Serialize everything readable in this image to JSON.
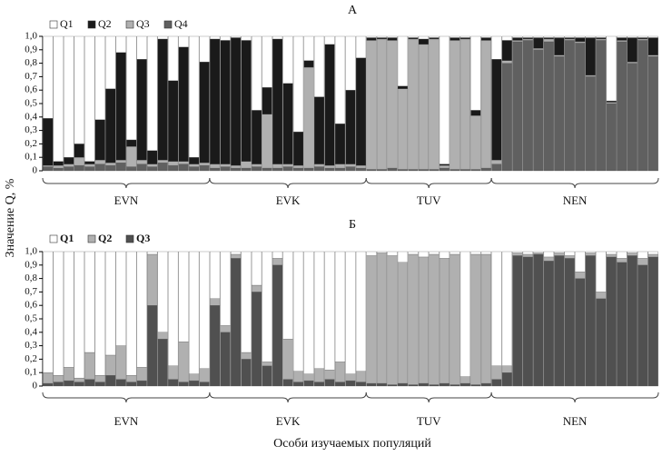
{
  "ylabel": "Значение Q, %",
  "xlabel": "Особи изучаемых популяций",
  "chart_data": [
    {
      "type": "stacked_bar",
      "title": "А",
      "legend": "top-left",
      "categories": [
        "EVN",
        "EVN",
        "EVN",
        "EVN",
        "EVN",
        "EVN",
        "EVN",
        "EVN",
        "EVN",
        "EVN",
        "EVN",
        "EVN",
        "EVN",
        "EVN",
        "EVN",
        "EVN",
        "EVK",
        "EVK",
        "EVK",
        "EVK",
        "EVK",
        "EVK",
        "EVK",
        "EVK",
        "EVK",
        "EVK",
        "EVK",
        "EVK",
        "EVK",
        "EVK",
        "EVK",
        "TUV",
        "TUV",
        "TUV",
        "TUV",
        "TUV",
        "TUV",
        "TUV",
        "TUV",
        "TUV",
        "TUV",
        "TUV",
        "TUV",
        "NEN",
        "NEN",
        "NEN",
        "NEN",
        "NEN",
        "NEN",
        "NEN",
        "NEN",
        "NEN",
        "NEN",
        "NEN",
        "NEN",
        "NEN",
        "NEN",
        "NEN",
        "NEN"
      ],
      "ylim": [
        0,
        1
      ],
      "yticks": [
        0,
        {
          "value": 0.1,
          "label": "0,1"
        },
        {
          "value": 0.2,
          "label": "0,2"
        },
        {
          "value": 0.3,
          "label": "0,3"
        },
        {
          "value": 0.4,
          "label": "0,4"
        },
        {
          "value": 0.5,
          "label": "0,5"
        },
        {
          "value": 0.6,
          "label": "0,6"
        },
        {
          "value": 0.7,
          "label": "0,7"
        },
        {
          "value": 0.8,
          "label": "0,8"
        },
        {
          "value": 0.9,
          "label": "0,9"
        },
        {
          "value": 1,
          "label": "1,0"
        }
      ],
      "series": [
        {
          "name": "Q1",
          "color": "#ffffff",
          "values": [
            0.61,
            0.93,
            0.9,
            0.8,
            0.93,
            0.62,
            0.39,
            0.12,
            0.77,
            0.17,
            0.85,
            0.02,
            0.33,
            0.08,
            0.9,
            0.19,
            0.02,
            0.03,
            0.01,
            0.03,
            0.55,
            0.38,
            0.02,
            0.35,
            0.71,
            0.18,
            0.45,
            0.06,
            0.65,
            0.4,
            0.16,
            0.01,
            0.01,
            0.01,
            0.37,
            0.01,
            0.02,
            0.01,
            0.95,
            0.01,
            0.01,
            0.55,
            0.01,
            0.17,
            0.03,
            0.01,
            0.01,
            0.01,
            0.01,
            0.01,
            0.01,
            0.01,
            0.01,
            0.01,
            0.48,
            0.01,
            0.01,
            0.01,
            0.01
          ]
        },
        {
          "name": "Q2",
          "color": "#1a1a1a",
          "values": [
            0.35,
            0.03,
            0.05,
            0.1,
            0.02,
            0.3,
            0.55,
            0.8,
            0.05,
            0.75,
            0.1,
            0.9,
            0.6,
            0.85,
            0.05,
            0.75,
            0.93,
            0.92,
            0.95,
            0.9,
            0.4,
            0.2,
            0.93,
            0.6,
            0.25,
            0.05,
            0.5,
            0.9,
            0.3,
            0.55,
            0.8,
            0.02,
            0.01,
            0.02,
            0.02,
            0.01,
            0.04,
            0.01,
            0.01,
            0.02,
            0.01,
            0.04,
            0.02,
            0.75,
            0.15,
            0.02,
            0.01,
            0.08,
            0.01,
            0.13,
            0.01,
            0.03,
            0.28,
            0.01,
            0.01,
            0.02,
            0.18,
            0.01,
            0.13
          ]
        },
        {
          "name": "Q3",
          "color": "#b0b0b0",
          "values": [
            0.01,
            0.02,
            0.02,
            0.06,
            0.02,
            0.03,
            0.02,
            0.02,
            0.15,
            0.03,
            0.02,
            0.02,
            0.03,
            0.02,
            0.02,
            0.02,
            0.03,
            0.02,
            0.02,
            0.05,
            0.02,
            0.4,
            0.03,
            0.02,
            0.02,
            0.75,
            0.02,
            0.02,
            0.03,
            0.02,
            0.02,
            0.96,
            0.97,
            0.95,
            0.6,
            0.97,
            0.93,
            0.97,
            0.02,
            0.96,
            0.97,
            0.4,
            0.95,
            0.03,
            0.02,
            0.01,
            0.01,
            0.01,
            0.02,
            0.01,
            0.01,
            0.01,
            0.01,
            0.01,
            0.01,
            0.01,
            0.01,
            0.01,
            0.01
          ]
        },
        {
          "name": "Q4",
          "color": "#606060",
          "values": [
            0.03,
            0.02,
            0.03,
            0.04,
            0.03,
            0.05,
            0.04,
            0.06,
            0.03,
            0.05,
            0.03,
            0.06,
            0.04,
            0.05,
            0.03,
            0.04,
            0.02,
            0.03,
            0.02,
            0.02,
            0.03,
            0.02,
            0.02,
            0.03,
            0.02,
            0.02,
            0.03,
            0.02,
            0.02,
            0.03,
            0.02,
            0.01,
            0.01,
            0.02,
            0.01,
            0.01,
            0.01,
            0.01,
            0.02,
            0.01,
            0.01,
            0.01,
            0.02,
            0.05,
            0.8,
            0.96,
            0.97,
            0.9,
            0.96,
            0.85,
            0.97,
            0.95,
            0.7,
            0.97,
            0.5,
            0.96,
            0.8,
            0.97,
            0.85
          ]
        }
      ]
    },
    {
      "type": "stacked_bar",
      "title": "Б",
      "legend": "top-left",
      "categories": [
        "EVN",
        "EVN",
        "EVN",
        "EVN",
        "EVN",
        "EVN",
        "EVN",
        "EVN",
        "EVN",
        "EVN",
        "EVN",
        "EVN",
        "EVN",
        "EVN",
        "EVN",
        "EVN",
        "EVK",
        "EVK",
        "EVK",
        "EVK",
        "EVK",
        "EVK",
        "EVK",
        "EVK",
        "EVK",
        "EVK",
        "EVK",
        "EVK",
        "EVK",
        "EVK",
        "EVK",
        "TUV",
        "TUV",
        "TUV",
        "TUV",
        "TUV",
        "TUV",
        "TUV",
        "TUV",
        "TUV",
        "TUV",
        "TUV",
        "TUV",
        "NEN",
        "NEN",
        "NEN",
        "NEN",
        "NEN",
        "NEN",
        "NEN",
        "NEN",
        "NEN",
        "NEN",
        "NEN",
        "NEN",
        "NEN",
        "NEN",
        "NEN",
        "NEN"
      ],
      "ylim": [
        0,
        1
      ],
      "yticks": [
        0,
        {
          "value": 0.1,
          "label": "0,1"
        },
        {
          "value": 0.2,
          "label": "0,2"
        },
        {
          "value": 0.3,
          "label": "0,3"
        },
        {
          "value": 0.4,
          "label": "0,4"
        },
        {
          "value": 0.5,
          "label": "0,5"
        },
        {
          "value": 0.6,
          "label": "0,6"
        },
        {
          "value": 0.7,
          "label": "0,7"
        },
        {
          "value": 0.8,
          "label": "0,8"
        },
        {
          "value": 0.9,
          "label": "0,9"
        },
        {
          "value": 1,
          "label": "1,0"
        }
      ],
      "series": [
        {
          "name": "Q1",
          "color": "#ffffff",
          "values": [
            0.9,
            0.92,
            0.86,
            0.94,
            0.75,
            0.92,
            0.77,
            0.7,
            0.92,
            0.86,
            0.02,
            0.6,
            0.85,
            0.67,
            0.91,
            0.87,
            0.35,
            0.55,
            0.02,
            0.75,
            0.25,
            0.82,
            0.05,
            0.65,
            0.89,
            0.91,
            0.87,
            0.88,
            0.82,
            0.91,
            0.89,
            0.03,
            0.01,
            0.03,
            0.08,
            0.02,
            0.04,
            0.02,
            0.05,
            0.02,
            0.93,
            0.02,
            0.02,
            0.85,
            0.85,
            0.01,
            0.02,
            0.01,
            0.04,
            0.01,
            0.03,
            0.15,
            0.01,
            0.3,
            0.02,
            0.05,
            0.01,
            0.05,
            0.02
          ]
        },
        {
          "name": "Q2",
          "color": "#b0b0b0",
          "values": [
            0.08,
            0.05,
            0.1,
            0.03,
            0.2,
            0.05,
            0.15,
            0.25,
            0.05,
            0.1,
            0.38,
            0.05,
            0.1,
            0.3,
            0.05,
            0.1,
            0.05,
            0.05,
            0.03,
            0.05,
            0.05,
            0.03,
            0.05,
            0.3,
            0.08,
            0.05,
            0.1,
            0.07,
            0.15,
            0.05,
            0.08,
            0.95,
            0.97,
            0.96,
            0.9,
            0.97,
            0.94,
            0.97,
            0.93,
            0.97,
            0.05,
            0.97,
            0.96,
            0.1,
            0.05,
            0.02,
            0.02,
            0.01,
            0.03,
            0.02,
            0.02,
            0.05,
            0.02,
            0.05,
            0.02,
            0.03,
            0.02,
            0.05,
            0.02
          ]
        },
        {
          "name": "Q3",
          "color": "#505050",
          "values": [
            0.02,
            0.03,
            0.04,
            0.03,
            0.05,
            0.03,
            0.08,
            0.05,
            0.03,
            0.04,
            0.6,
            0.35,
            0.05,
            0.03,
            0.04,
            0.03,
            0.6,
            0.4,
            0.95,
            0.2,
            0.7,
            0.15,
            0.9,
            0.05,
            0.03,
            0.04,
            0.03,
            0.05,
            0.03,
            0.04,
            0.03,
            0.02,
            0.02,
            0.01,
            0.02,
            0.01,
            0.02,
            0.01,
            0.02,
            0.01,
            0.02,
            0.01,
            0.02,
            0.05,
            0.1,
            0.97,
            0.96,
            0.98,
            0.93,
            0.97,
            0.95,
            0.8,
            0.97,
            0.65,
            0.96,
            0.92,
            0.97,
            0.9,
            0.96
          ]
        }
      ]
    }
  ]
}
